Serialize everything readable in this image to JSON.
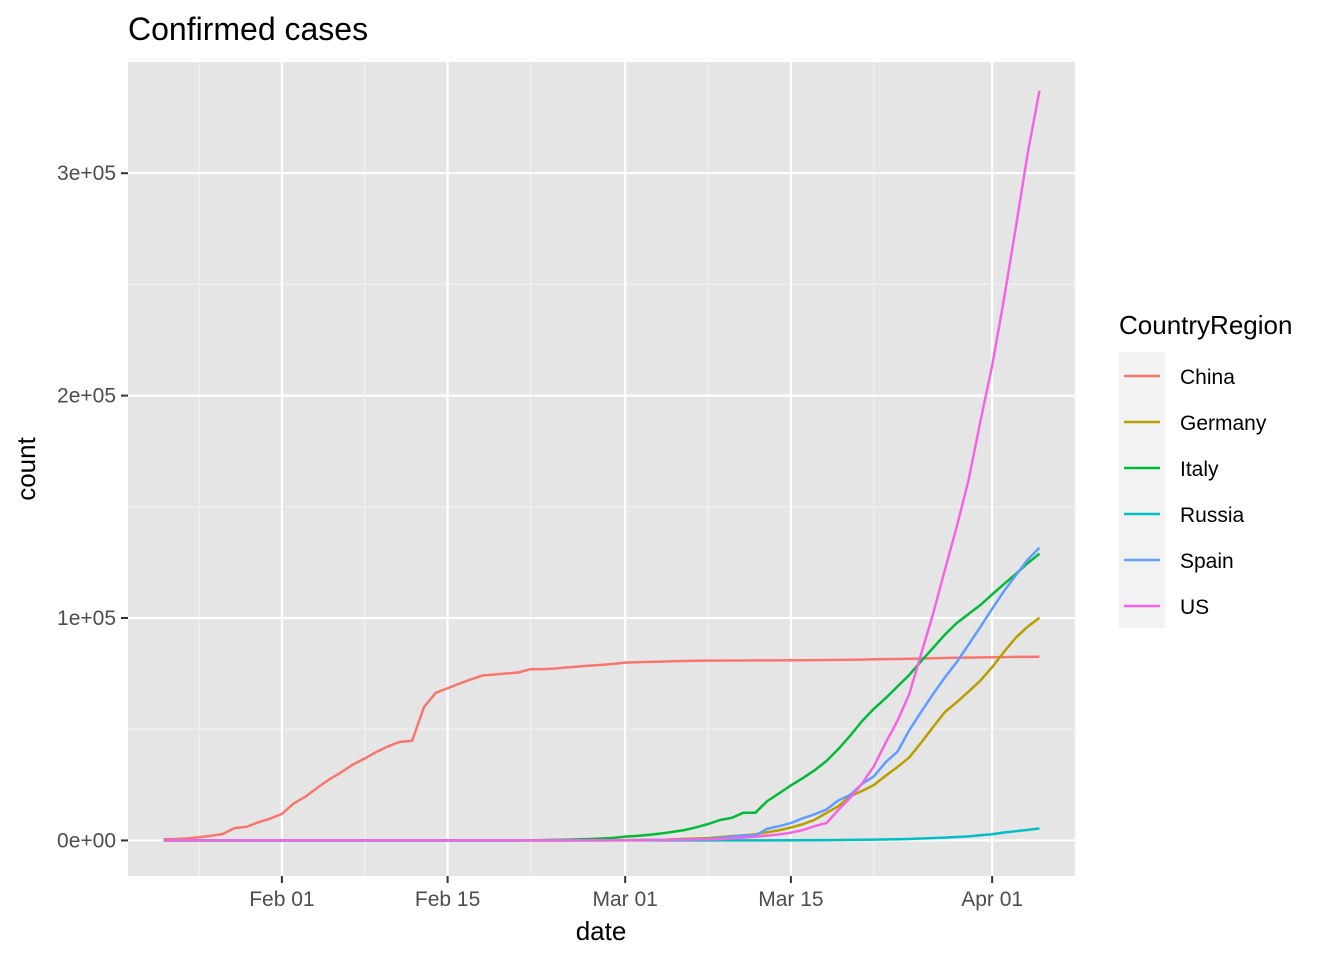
{
  "chart_data": {
    "type": "line",
    "title": "Confirmed cases",
    "xlabel": "date",
    "ylabel": "count",
    "x_axis_type": "date",
    "xlim": [
      "2020-01-19",
      "2020-04-08"
    ],
    "ylim": [
      -16000,
      350000
    ],
    "x_ticks": [
      {
        "date": "2020-02-01",
        "label": "Feb 01"
      },
      {
        "date": "2020-02-15",
        "label": "Feb 15"
      },
      {
        "date": "2020-03-01",
        "label": "Mar 01"
      },
      {
        "date": "2020-03-15",
        "label": "Mar 15"
      },
      {
        "date": "2020-04-01",
        "label": "Apr 01"
      }
    ],
    "x_minor_ticks": [
      "2020-01-25",
      "2020-02-08",
      "2020-02-22",
      "2020-03-08",
      "2020-03-22",
      "2020-04-08"
    ],
    "y_ticks": [
      {
        "value": 0,
        "label": "0e+00"
      },
      {
        "value": 100000,
        "label": "1e+05"
      },
      {
        "value": 200000,
        "label": "2e+05"
      },
      {
        "value": 300000,
        "label": "3e+05"
      }
    ],
    "y_minor_ticks": [
      50000,
      150000,
      250000
    ],
    "grid": true,
    "background": "#e5e5e5",
    "legend": {
      "title": "CountryRegion",
      "position": "right"
    },
    "series": [
      {
        "name": "China",
        "color": "#F8766D",
        "points": [
          [
            "2020-01-22",
            548
          ],
          [
            "2020-01-23",
            643
          ],
          [
            "2020-01-24",
            920
          ],
          [
            "2020-01-25",
            1406
          ],
          [
            "2020-01-26",
            2075
          ],
          [
            "2020-01-27",
            2877
          ],
          [
            "2020-01-28",
            5509
          ],
          [
            "2020-01-29",
            6087
          ],
          [
            "2020-01-30",
            8141
          ],
          [
            "2020-01-31",
            9802
          ],
          [
            "2020-02-01",
            11891
          ],
          [
            "2020-02-02",
            16630
          ],
          [
            "2020-02-03",
            19716
          ],
          [
            "2020-02-04",
            23707
          ],
          [
            "2020-02-05",
            27440
          ],
          [
            "2020-02-06",
            30587
          ],
          [
            "2020-02-07",
            34110
          ],
          [
            "2020-02-08",
            36814
          ],
          [
            "2020-02-09",
            39829
          ],
          [
            "2020-02-10",
            42354
          ],
          [
            "2020-02-11",
            44386
          ],
          [
            "2020-02-12",
            44759
          ],
          [
            "2020-02-13",
            59895
          ],
          [
            "2020-02-14",
            66358
          ],
          [
            "2020-02-15",
            68413
          ],
          [
            "2020-02-16",
            70513
          ],
          [
            "2020-02-17",
            72434
          ],
          [
            "2020-02-18",
            74211
          ],
          [
            "2020-02-19",
            74619
          ],
          [
            "2020-02-20",
            75077
          ],
          [
            "2020-02-21",
            75550
          ],
          [
            "2020-02-22",
            77001
          ],
          [
            "2020-02-23",
            77022
          ],
          [
            "2020-02-24",
            77241
          ],
          [
            "2020-02-25",
            77754
          ],
          [
            "2020-02-26",
            78166
          ],
          [
            "2020-02-27",
            78600
          ],
          [
            "2020-02-28",
            78928
          ],
          [
            "2020-02-29",
            79356
          ],
          [
            "2020-03-01",
            79932
          ],
          [
            "2020-03-02",
            80136
          ],
          [
            "2020-03-03",
            80261
          ],
          [
            "2020-03-04",
            80386
          ],
          [
            "2020-03-05",
            80537
          ],
          [
            "2020-03-06",
            80690
          ],
          [
            "2020-03-07",
            80770
          ],
          [
            "2020-03-08",
            80823
          ],
          [
            "2020-03-09",
            80860
          ],
          [
            "2020-03-10",
            80887
          ],
          [
            "2020-03-11",
            80921
          ],
          [
            "2020-03-12",
            80932
          ],
          [
            "2020-03-13",
            80945
          ],
          [
            "2020-03-14",
            80977
          ],
          [
            "2020-03-15",
            81003
          ],
          [
            "2020-03-16",
            81033
          ],
          [
            "2020-03-17",
            81058
          ],
          [
            "2020-03-18",
            81102
          ],
          [
            "2020-03-19",
            81156
          ],
          [
            "2020-03-20",
            81250
          ],
          [
            "2020-03-21",
            81305
          ],
          [
            "2020-03-22",
            81435
          ],
          [
            "2020-03-23",
            81498
          ],
          [
            "2020-03-24",
            81591
          ],
          [
            "2020-03-25",
            81661
          ],
          [
            "2020-03-26",
            81782
          ],
          [
            "2020-03-27",
            81897
          ],
          [
            "2020-03-28",
            81999
          ],
          [
            "2020-03-29",
            82122
          ],
          [
            "2020-03-30",
            82198
          ],
          [
            "2020-03-31",
            82279
          ],
          [
            "2020-04-01",
            82361
          ],
          [
            "2020-04-02",
            82432
          ],
          [
            "2020-04-03",
            82511
          ],
          [
            "2020-04-04",
            82543
          ],
          [
            "2020-04-05",
            82602
          ]
        ]
      },
      {
        "name": "Germany",
        "color": "#B79F00",
        "points": [
          [
            "2020-01-22",
            0
          ],
          [
            "2020-02-25",
            18
          ],
          [
            "2020-03-01",
            130
          ],
          [
            "2020-03-04",
            262
          ],
          [
            "2020-03-06",
            670
          ],
          [
            "2020-03-08",
            1040
          ],
          [
            "2020-03-10",
            1908
          ],
          [
            "2020-03-12",
            2745
          ],
          [
            "2020-03-13",
            3675
          ],
          [
            "2020-03-14",
            4585
          ],
          [
            "2020-03-15",
            5795
          ],
          [
            "2020-03-16",
            7272
          ],
          [
            "2020-03-17",
            9257
          ],
          [
            "2020-03-18",
            12327
          ],
          [
            "2020-03-19",
            15320
          ],
          [
            "2020-03-20",
            19848
          ],
          [
            "2020-03-21",
            22213
          ],
          [
            "2020-03-22",
            24873
          ],
          [
            "2020-03-23",
            29056
          ],
          [
            "2020-03-24",
            32986
          ],
          [
            "2020-03-25",
            37323
          ],
          [
            "2020-03-26",
            43938
          ],
          [
            "2020-03-27",
            50871
          ],
          [
            "2020-03-28",
            57695
          ],
          [
            "2020-03-29",
            62095
          ],
          [
            "2020-03-30",
            66885
          ],
          [
            "2020-03-31",
            71808
          ],
          [
            "2020-04-01",
            77872
          ],
          [
            "2020-04-02",
            84794
          ],
          [
            "2020-04-03",
            91159
          ],
          [
            "2020-04-04",
            96092
          ],
          [
            "2020-04-05",
            100123
          ]
        ]
      },
      {
        "name": "Italy",
        "color": "#00BA38",
        "points": [
          [
            "2020-01-22",
            0
          ],
          [
            "2020-02-20",
            3
          ],
          [
            "2020-02-21",
            20
          ],
          [
            "2020-02-22",
            62
          ],
          [
            "2020-02-23",
            155
          ],
          [
            "2020-02-24",
            229
          ],
          [
            "2020-02-25",
            322
          ],
          [
            "2020-02-26",
            453
          ],
          [
            "2020-02-27",
            655
          ],
          [
            "2020-02-28",
            888
          ],
          [
            "2020-02-29",
            1128
          ],
          [
            "2020-03-01",
            1694
          ],
          [
            "2020-03-02",
            2036
          ],
          [
            "2020-03-03",
            2502
          ],
          [
            "2020-03-04",
            3089
          ],
          [
            "2020-03-05",
            3858
          ],
          [
            "2020-03-06",
            4636
          ],
          [
            "2020-03-07",
            5883
          ],
          [
            "2020-03-08",
            7375
          ],
          [
            "2020-03-09",
            9172
          ],
          [
            "2020-03-10",
            10149
          ],
          [
            "2020-03-11",
            12462
          ],
          [
            "2020-03-12",
            12462
          ],
          [
            "2020-03-13",
            17660
          ],
          [
            "2020-03-14",
            21157
          ],
          [
            "2020-03-15",
            24747
          ],
          [
            "2020-03-16",
            27980
          ],
          [
            "2020-03-17",
            31506
          ],
          [
            "2020-03-18",
            35713
          ],
          [
            "2020-03-19",
            41035
          ],
          [
            "2020-03-20",
            47021
          ],
          [
            "2020-03-21",
            53578
          ],
          [
            "2020-03-22",
            59138
          ],
          [
            "2020-03-23",
            63927
          ],
          [
            "2020-03-24",
            69176
          ],
          [
            "2020-03-25",
            74386
          ],
          [
            "2020-03-26",
            80589
          ],
          [
            "2020-03-27",
            86498
          ],
          [
            "2020-03-28",
            92472
          ],
          [
            "2020-03-29",
            97689
          ],
          [
            "2020-03-30",
            101739
          ],
          [
            "2020-03-31",
            105792
          ],
          [
            "2020-04-01",
            110574
          ],
          [
            "2020-04-02",
            115242
          ],
          [
            "2020-04-03",
            119827
          ],
          [
            "2020-04-04",
            124632
          ],
          [
            "2020-04-05",
            128948
          ]
        ]
      },
      {
        "name": "Russia",
        "color": "#00BFC4",
        "points": [
          [
            "2020-01-22",
            0
          ],
          [
            "2020-03-10",
            10
          ],
          [
            "2020-03-15",
            63
          ],
          [
            "2020-03-18",
            147
          ],
          [
            "2020-03-20",
            253
          ],
          [
            "2020-03-22",
            367
          ],
          [
            "2020-03-24",
            495
          ],
          [
            "2020-03-25",
            658
          ],
          [
            "2020-03-26",
            840
          ],
          [
            "2020-03-27",
            1036
          ],
          [
            "2020-03-28",
            1264
          ],
          [
            "2020-03-29",
            1534
          ],
          [
            "2020-03-30",
            1836
          ],
          [
            "2020-03-31",
            2337
          ],
          [
            "2020-04-01",
            2777
          ],
          [
            "2020-04-02",
            3548
          ],
          [
            "2020-04-03",
            4149
          ],
          [
            "2020-04-04",
            4731
          ],
          [
            "2020-04-05",
            5389
          ]
        ]
      },
      {
        "name": "Spain",
        "color": "#619CFF",
        "points": [
          [
            "2020-01-22",
            0
          ],
          [
            "2020-02-25",
            6
          ],
          [
            "2020-03-01",
            84
          ],
          [
            "2020-03-04",
            222
          ],
          [
            "2020-03-06",
            400
          ],
          [
            "2020-03-08",
            673
          ],
          [
            "2020-03-09",
            1073
          ],
          [
            "2020-03-10",
            1695
          ],
          [
            "2020-03-11",
            2277
          ],
          [
            "2020-03-12",
            2277
          ],
          [
            "2020-03-13",
            5232
          ],
          [
            "2020-03-14",
            6391
          ],
          [
            "2020-03-15",
            7798
          ],
          [
            "2020-03-16",
            9942
          ],
          [
            "2020-03-17",
            11748
          ],
          [
            "2020-03-18",
            13910
          ],
          [
            "2020-03-19",
            17963
          ],
          [
            "2020-03-20",
            20410
          ],
          [
            "2020-03-21",
            25374
          ],
          [
            "2020-03-22",
            28768
          ],
          [
            "2020-03-23",
            35136
          ],
          [
            "2020-03-24",
            39885
          ],
          [
            "2020-03-25",
            49515
          ],
          [
            "2020-03-26",
            57786
          ],
          [
            "2020-03-27",
            65719
          ],
          [
            "2020-03-28",
            73235
          ],
          [
            "2020-03-29",
            80110
          ],
          [
            "2020-03-30",
            87956
          ],
          [
            "2020-03-31",
            95923
          ],
          [
            "2020-04-01",
            104118
          ],
          [
            "2020-04-02",
            112065
          ],
          [
            "2020-04-03",
            119199
          ],
          [
            "2020-04-04",
            126168
          ],
          [
            "2020-04-05",
            131646
          ]
        ]
      },
      {
        "name": "US",
        "color": "#F564E3",
        "points": [
          [
            "2020-01-22",
            1
          ],
          [
            "2020-02-01",
            8
          ],
          [
            "2020-02-15",
            13
          ],
          [
            "2020-03-01",
            74
          ],
          [
            "2020-03-03",
            122
          ],
          [
            "2020-03-05",
            221
          ],
          [
            "2020-03-07",
            430
          ],
          [
            "2020-03-09",
            605
          ],
          [
            "2020-03-10",
            959
          ],
          [
            "2020-03-11",
            1281
          ],
          [
            "2020-03-12",
            1663
          ],
          [
            "2020-03-13",
            2179
          ],
          [
            "2020-03-14",
            2727
          ],
          [
            "2020-03-15",
            3499
          ],
          [
            "2020-03-16",
            4632
          ],
          [
            "2020-03-17",
            6421
          ],
          [
            "2020-03-18",
            7786
          ],
          [
            "2020-03-19",
            13680
          ],
          [
            "2020-03-20",
            19101
          ],
          [
            "2020-03-21",
            25493
          ],
          [
            "2020-03-22",
            33276
          ],
          [
            "2020-03-23",
            43847
          ],
          [
            "2020-03-24",
            53740
          ],
          [
            "2020-03-25",
            65778
          ],
          [
            "2020-03-26",
            83836
          ],
          [
            "2020-03-27",
            101657
          ],
          [
            "2020-03-28",
            121478
          ],
          [
            "2020-03-29",
            140886
          ],
          [
            "2020-03-30",
            161807
          ],
          [
            "2020-03-31",
            188172
          ],
          [
            "2020-04-01",
            213372
          ],
          [
            "2020-04-02",
            243453
          ],
          [
            "2020-04-03",
            275586
          ],
          [
            "2020-04-04",
            308850
          ],
          [
            "2020-04-05",
            337072
          ]
        ]
      }
    ]
  }
}
